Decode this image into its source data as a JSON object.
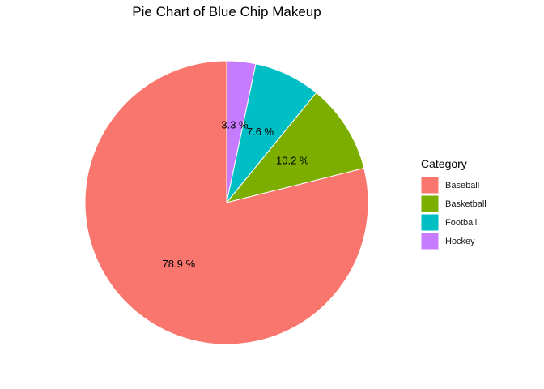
{
  "chart_data": {
    "type": "pie",
    "title": "Pie Chart of Blue Chip Makeup",
    "legend": {
      "title": "Category",
      "position": "right"
    },
    "slices": [
      {
        "category": "Baseball",
        "value": 78.9,
        "label": "78.9 %",
        "color": "#F8766D"
      },
      {
        "category": "Basketball",
        "value": 10.2,
        "label": "10.2 %",
        "color": "#7CAE00"
      },
      {
        "category": "Football",
        "value": 7.6,
        "label": "7.6 %",
        "color": "#00BFC4"
      },
      {
        "category": "Hockey",
        "value": 3.3,
        "label": "3.3 %",
        "color": "#C77CFF"
      }
    ]
  }
}
